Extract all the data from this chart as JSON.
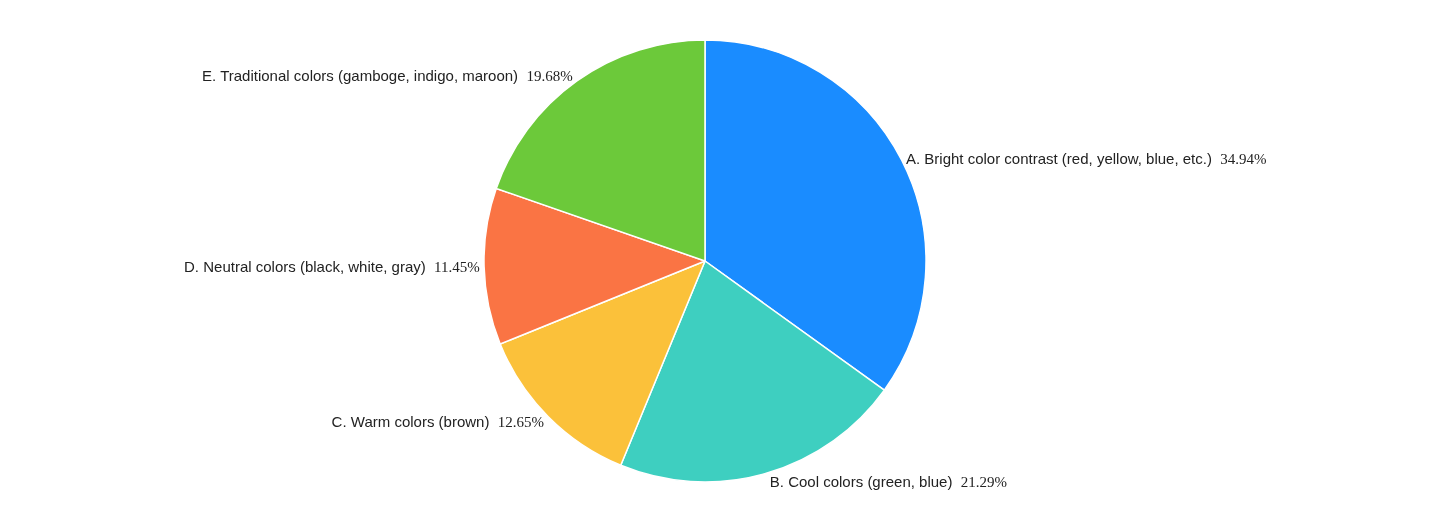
{
  "chart_data": {
    "type": "pie",
    "categories": [
      "A. Bright color contrast (red, yellow, blue, etc.)",
      "B. Cool colors (green, blue)",
      "C. Warm colors (brown)",
      "D. Neutral colors (black, white, gray)",
      "E. Traditional colors (gamboge, indigo, maroon)"
    ],
    "values": [
      34.94,
      21.29,
      12.65,
      11.45,
      19.68
    ],
    "colors": [
      "#1a8cff",
      "#3ecfc0",
      "#fbc13a",
      "#fa7444",
      "#6cc93a"
    ],
    "value_labels": [
      "34.94%",
      "21.29%",
      "12.65%",
      "11.45%",
      "19.68%"
    ],
    "legend": false
  }
}
